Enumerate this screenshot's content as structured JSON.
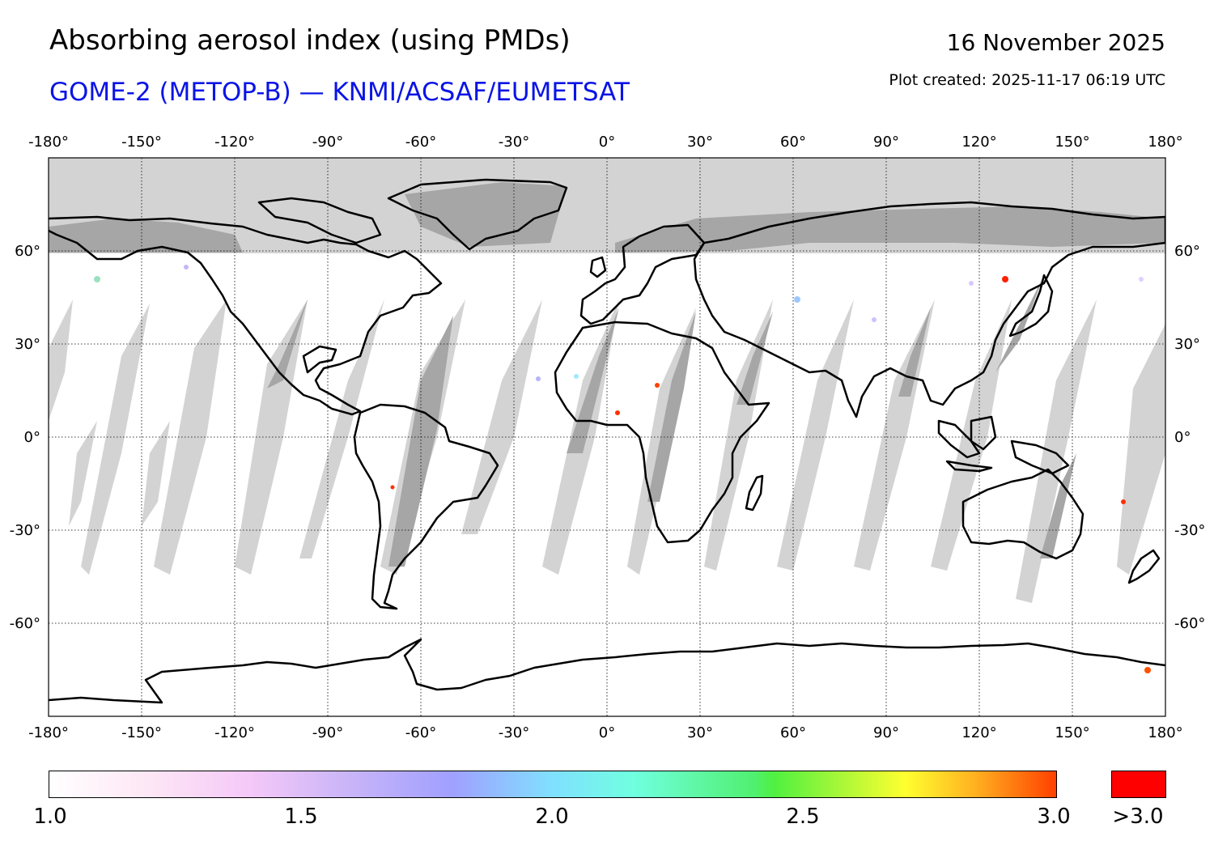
{
  "header": {
    "title": "Absorbing aerosol index (using PMDs)",
    "subtitle": "GOME-2 (METOP-B) — KNMI/ACSAF/EUMETSAT",
    "date": "16 November 2025",
    "created": "Plot created: 2025-11-17 06:19 UTC"
  },
  "axes": {
    "lon_ticks": [
      "-180°",
      "-150°",
      "-120°",
      "-90°",
      "-60°",
      "-30°",
      "0°",
      "30°",
      "60°",
      "90°",
      "120°",
      "150°",
      "180°"
    ],
    "lat_ticks": [
      "60°",
      "30°",
      "0°",
      "-30°",
      "-60°"
    ]
  },
  "colorbar": {
    "labels": [
      "1.0",
      "1.5",
      "2.0",
      "2.5",
      "3.0"
    ],
    "over_label": ">3.0",
    "over_color": "#ff0000"
  },
  "colors": {
    "no_data": "#d3d3d3",
    "polar_night": "#a6a6a6",
    "coast": "#000000",
    "subtitle": "#0a14e6"
  }
}
